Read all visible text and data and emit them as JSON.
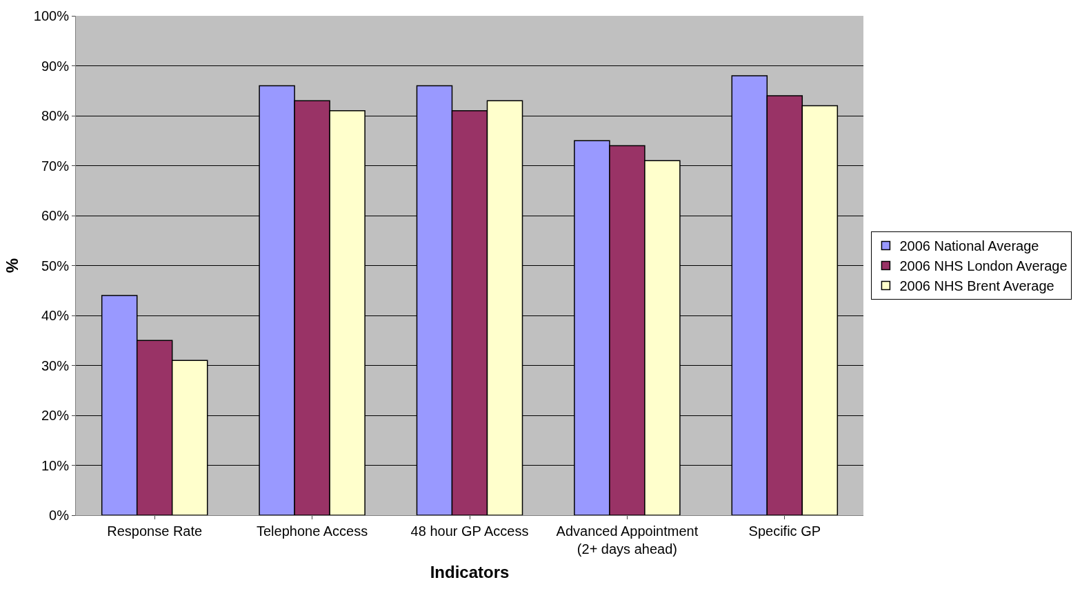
{
  "chart_data": {
    "type": "bar",
    "xlabel": "Indicators",
    "ylabel": "%",
    "categories": [
      "Response Rate",
      "Telephone Access",
      "48 hour GP Access",
      "Advanced Appointment (2+ days ahead)",
      "Specific GP"
    ],
    "series": [
      {
        "name": "2006 National Average",
        "color": "#9999ff",
        "values": [
          44,
          86,
          86,
          75,
          88
        ]
      },
      {
        "name": "2006 NHS London Average",
        "color": "#993366",
        "values": [
          35,
          83,
          81,
          74,
          84
        ]
      },
      {
        "name": "2006 NHS Brent Average",
        "color": "#ffffcc",
        "values": [
          31,
          81,
          83,
          71,
          82
        ]
      }
    ],
    "ylim": [
      0,
      100
    ],
    "yticks": [
      {
        "value": 0,
        "label": "0%"
      },
      {
        "value": 10,
        "label": "10%"
      },
      {
        "value": 20,
        "label": "20%"
      },
      {
        "value": 30,
        "label": "30%"
      },
      {
        "value": 40,
        "label": "40%"
      },
      {
        "value": 50,
        "label": "50%"
      },
      {
        "value": 60,
        "label": "60%"
      },
      {
        "value": 70,
        "label": "70%"
      },
      {
        "value": 80,
        "label": "80%"
      },
      {
        "value": 90,
        "label": "90%"
      },
      {
        "value": 100,
        "label": "100%"
      }
    ],
    "grid": "y",
    "legend": "right"
  }
}
